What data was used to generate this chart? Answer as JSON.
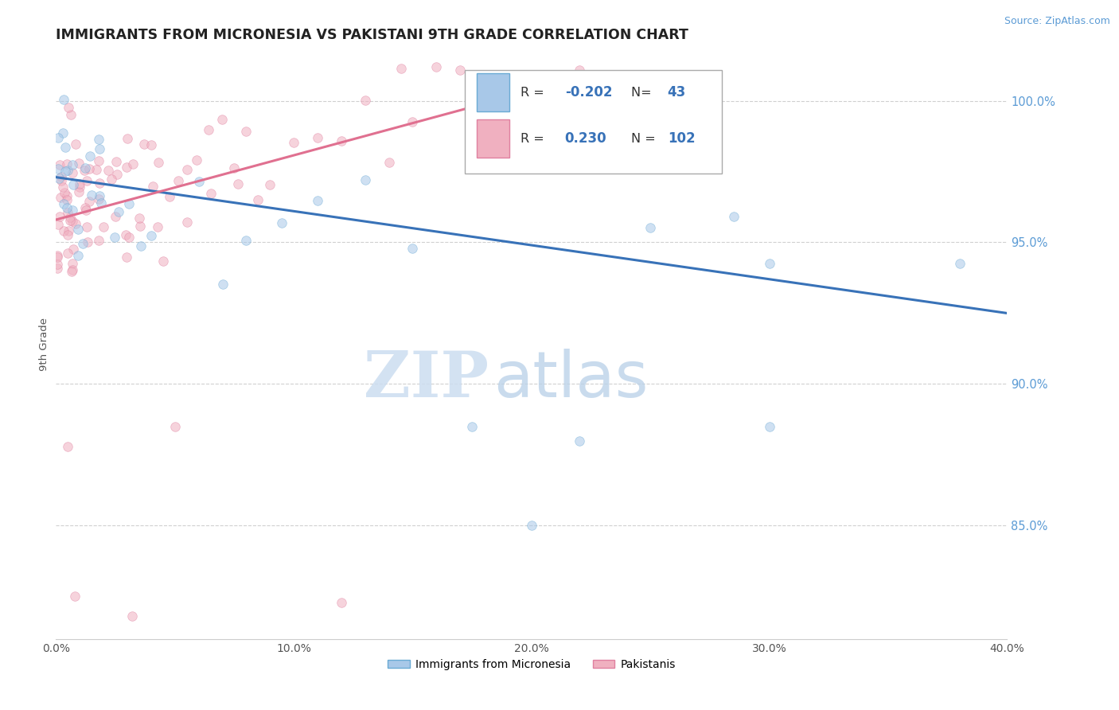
{
  "title": "IMMIGRANTS FROM MICRONESIA VS PAKISTANI 9TH GRADE CORRELATION CHART",
  "source_text": "Source: ZipAtlas.com",
  "ylabel": "9th Grade",
  "xlim": [
    0.0,
    40.0
  ],
  "ylim": [
    81.0,
    101.8
  ],
  "ytick_vals": [
    85.0,
    90.0,
    95.0,
    100.0
  ],
  "xtick_vals": [
    0.0,
    10.0,
    20.0,
    30.0,
    40.0
  ],
  "blue_R": "-0.202",
  "blue_N": "43",
  "pink_R": "0.230",
  "pink_N": "102",
  "blue_dot_color": "#a8c8e8",
  "blue_edge_color": "#6aaad4",
  "blue_line_color": "#3872b8",
  "pink_dot_color": "#f0b0c0",
  "pink_edge_color": "#e080a0",
  "pink_line_color": "#e07090",
  "blue_trend_x": [
    0.0,
    40.0
  ],
  "blue_trend_y": [
    97.3,
    92.5
  ],
  "pink_trend_x": [
    0.0,
    22.0
  ],
  "pink_trend_y": [
    95.8,
    100.8
  ],
  "watermark_zip": "ZIP",
  "watermark_atlas": "atlas",
  "bg_color": "#ffffff",
  "grid_color": "#d0d0d0",
  "tick_color": "#5b9bd5",
  "title_color": "#222222",
  "source_color": "#5b9bd5",
  "title_fontsize": 12.5,
  "scatter_size": 70,
  "scatter_alpha": 0.55,
  "legend_label_blue": "Immigrants from Micronesia",
  "legend_label_pink": "Pakistanis"
}
